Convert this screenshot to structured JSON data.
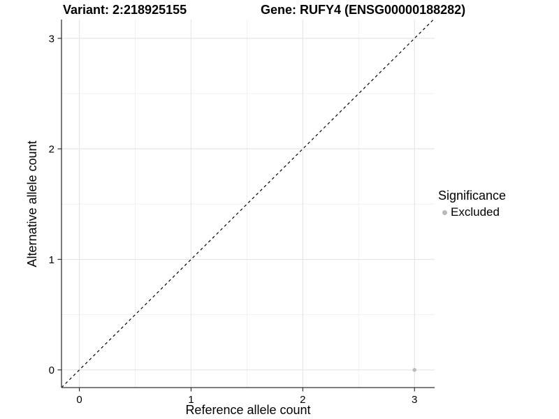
{
  "title": {
    "variant": "Variant: 2:218925155",
    "gene": "Gene: RUFY4 (ENSG00000188282)"
  },
  "legend": {
    "title": "Significance",
    "items": [
      {
        "label": "Excluded",
        "color": "#b9b9b9",
        "marker": "circle"
      }
    ]
  },
  "chart_data": {
    "type": "scatter",
    "title": "Variant: 2:218925155    Gene: RUFY4 (ENSG00000188282)",
    "xlabel": "Reference allele count",
    "ylabel": "Alternative allele count",
    "xlim": [
      -0.16,
      3.18
    ],
    "ylim": [
      -0.16,
      3.17
    ],
    "x_ticks": [
      "0",
      "1",
      "2",
      "3"
    ],
    "y_ticks": [
      "0",
      "1",
      "2",
      "3"
    ],
    "x_tick_values": [
      0,
      1,
      2,
      3
    ],
    "y_tick_values": [
      0,
      1,
      2,
      3
    ],
    "grid": {
      "major_values": [
        0,
        1,
        2,
        3
      ],
      "minor_values": [
        0.5,
        1.5,
        2.5
      ],
      "major_color": "#e6e6e6",
      "minor_color": "#f0f0f0"
    },
    "reference_line": {
      "type": "identity",
      "style": "dashed",
      "color": "#000000",
      "description": "y = x dashed diagonal"
    },
    "legend_position": "right",
    "series": [
      {
        "name": "Excluded",
        "color": "#b9b9b9",
        "points": [
          {
            "x": 3,
            "y": 0
          }
        ]
      }
    ]
  },
  "colors": {
    "background": "#ffffff",
    "axis_line": "#333333",
    "tick_label": "#000000",
    "point_excluded": "#b9b9b9"
  }
}
